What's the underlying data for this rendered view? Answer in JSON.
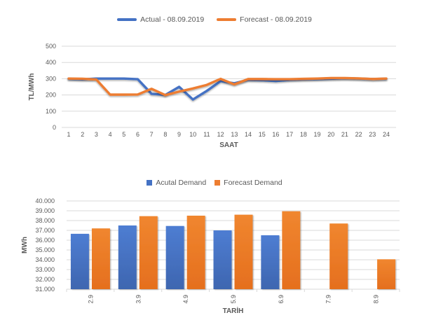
{
  "page": {
    "background": "#FFFFFF"
  },
  "colors": {
    "actual_blue": "#4472C4",
    "forecast_orange": "#ED7D31",
    "gridline": "#D9D9D9",
    "text_gray": "#595959"
  },
  "chart_data": [
    {
      "type": "line",
      "title": "",
      "xlabel": "SAAT",
      "ylabel": "TL/MWh",
      "ylim": [
        0,
        500
      ],
      "yticks": [
        0,
        100,
        200,
        300,
        400,
        500
      ],
      "grid": true,
      "legend_position": "top",
      "x": [
        1,
        2,
        3,
        4,
        5,
        6,
        7,
        8,
        9,
        10,
        11,
        12,
        13,
        14,
        15,
        16,
        17,
        18,
        19,
        20,
        21,
        22,
        23,
        24
      ],
      "series": [
        {
          "name": "Actual - 08.09.2019",
          "color": "#4472C4",
          "values": [
            300,
            296,
            301,
            301,
            301,
            297,
            207,
            200,
            250,
            172,
            225,
            285,
            272,
            293,
            291,
            286,
            293,
            296,
            298,
            300,
            303,
            301,
            298,
            300
          ]
        },
        {
          "name": "Forecast - 08.09.2019",
          "color": "#ED7D31",
          "values": [
            301,
            300,
            295,
            202,
            202,
            203,
            238,
            199,
            221,
            240,
            262,
            299,
            265,
            298,
            298,
            297,
            297,
            299,
            301,
            304,
            304,
            302,
            298,
            301
          ]
        }
      ]
    },
    {
      "type": "bar",
      "title": "",
      "xlabel": "TARİH",
      "ylabel": "MWh",
      "ylim": [
        31000,
        40000
      ],
      "ytick_step": 1000,
      "ytick_labels": [
        "31.000",
        "32.000",
        "33.000",
        "34.000",
        "35.000",
        "36.000",
        "37.000",
        "38.000",
        "39.000",
        "40.000"
      ],
      "grid": true,
      "legend_position": "top",
      "categories": [
        "2.9",
        "3.9",
        "4.9",
        "5.9",
        "6.9",
        "7.9",
        "8.9"
      ],
      "series": [
        {
          "name": "Acutal Demand",
          "color": "#4472C4",
          "values": [
            36650,
            37500,
            37450,
            37000,
            36500,
            null,
            null
          ]
        },
        {
          "name": "Forecast Demand",
          "color": "#ED7D31",
          "values": [
            37200,
            38450,
            38500,
            38600,
            38950,
            37700,
            34050
          ]
        }
      ]
    }
  ]
}
